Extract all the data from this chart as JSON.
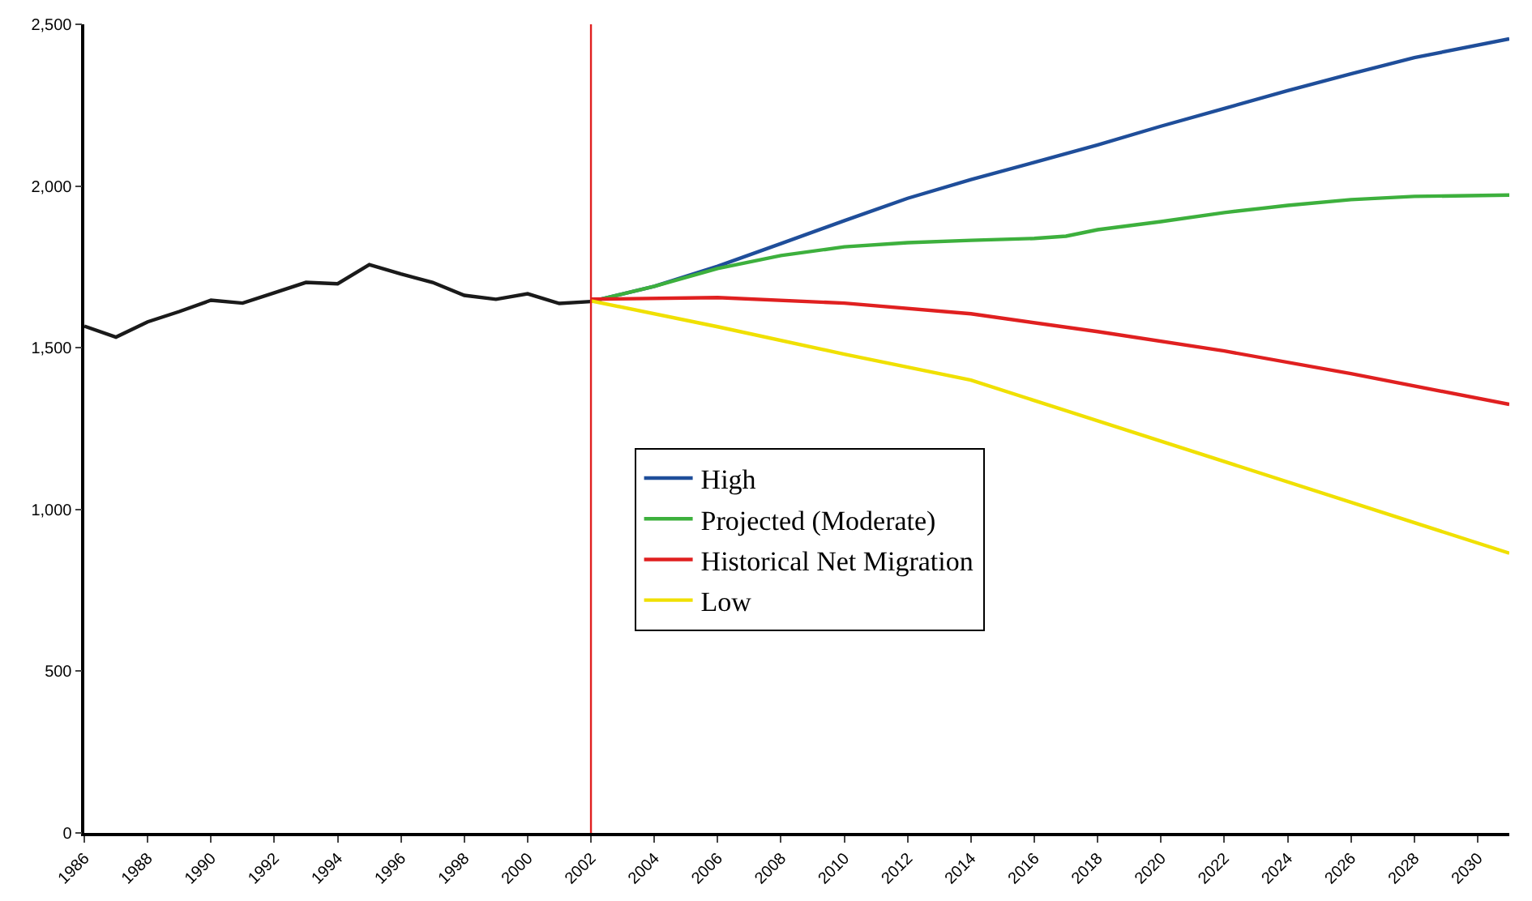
{
  "chart_data": {
    "type": "line",
    "legend": "center",
    "grid": false,
    "marker": "none",
    "line_style": "solid",
    "xlim": [
      1986,
      2031
    ],
    "xticks": [
      1986,
      1988,
      1990,
      1992,
      1994,
      1996,
      1998,
      2000,
      2002,
      2004,
      2006,
      2008,
      2010,
      2012,
      2014,
      2016,
      2018,
      2020,
      2022,
      2024,
      2026,
      2028,
      2030
    ],
    "ylim": [
      0,
      2500
    ],
    "yticks": [
      {
        "value": 0,
        "label": "0"
      },
      {
        "value": 500,
        "label": "500"
      },
      {
        "value": 1000,
        "label": "1,000"
      },
      {
        "value": 1500,
        "label": "1,500"
      },
      {
        "value": 2000,
        "label": "2,000"
      },
      {
        "value": 2500,
        "label": "2,500"
      }
    ],
    "ref_lines": [
      {
        "axis": "x",
        "value": 2002,
        "color": "#e02020"
      }
    ],
    "series": [
      {
        "color": "#1a1a1a",
        "x": [
          1986,
          1987,
          1988,
          1989,
          1990,
          1991,
          1992,
          1993,
          1994,
          1995,
          1996,
          1997,
          1998,
          1999,
          2000,
          2001,
          2002
        ],
        "values": [
          1567,
          1533,
          1580,
          1612,
          1647,
          1638,
          1670,
          1702,
          1698,
          1757,
          1728,
          1702,
          1662,
          1650,
          1667,
          1637,
          1643
        ]
      },
      {
        "name": "High",
        "color": "#1f4e9a",
        "x": [
          2002,
          2004,
          2006,
          2008,
          2010,
          2012,
          2014,
          2016,
          2018,
          2020,
          2022,
          2024,
          2026,
          2028,
          2031
        ],
        "values": [
          1643,
          1690,
          1752,
          1822,
          1893,
          1962,
          2020,
          2073,
          2127,
          2185,
          2240,
          2295,
          2347,
          2397,
          2455
        ]
      },
      {
        "name": "Projected (Moderate)",
        "color": "#3db03d",
        "x": [
          2002,
          2004,
          2006,
          2008,
          2010,
          2012,
          2014,
          2016,
          2017,
          2018,
          2020,
          2022,
          2024,
          2026,
          2028,
          2031
        ],
        "values": [
          1643,
          1690,
          1745,
          1785,
          1812,
          1825,
          1832,
          1838,
          1845,
          1865,
          1890,
          1918,
          1940,
          1958,
          1968,
          1972
        ]
      },
      {
        "name": "Historical Net Migration",
        "color": "#e02020",
        "x": [
          2002,
          2006,
          2010,
          2014,
          2018,
          2022,
          2026,
          2031
        ],
        "values": [
          1650,
          1655,
          1638,
          1605,
          1550,
          1490,
          1420,
          1325
        ]
      },
      {
        "name": "Low",
        "color": "#f0e000",
        "x": [
          2002,
          2006,
          2010,
          2014,
          2031
        ],
        "values": [
          1645,
          1565,
          1480,
          1400,
          865
        ]
      }
    ]
  }
}
